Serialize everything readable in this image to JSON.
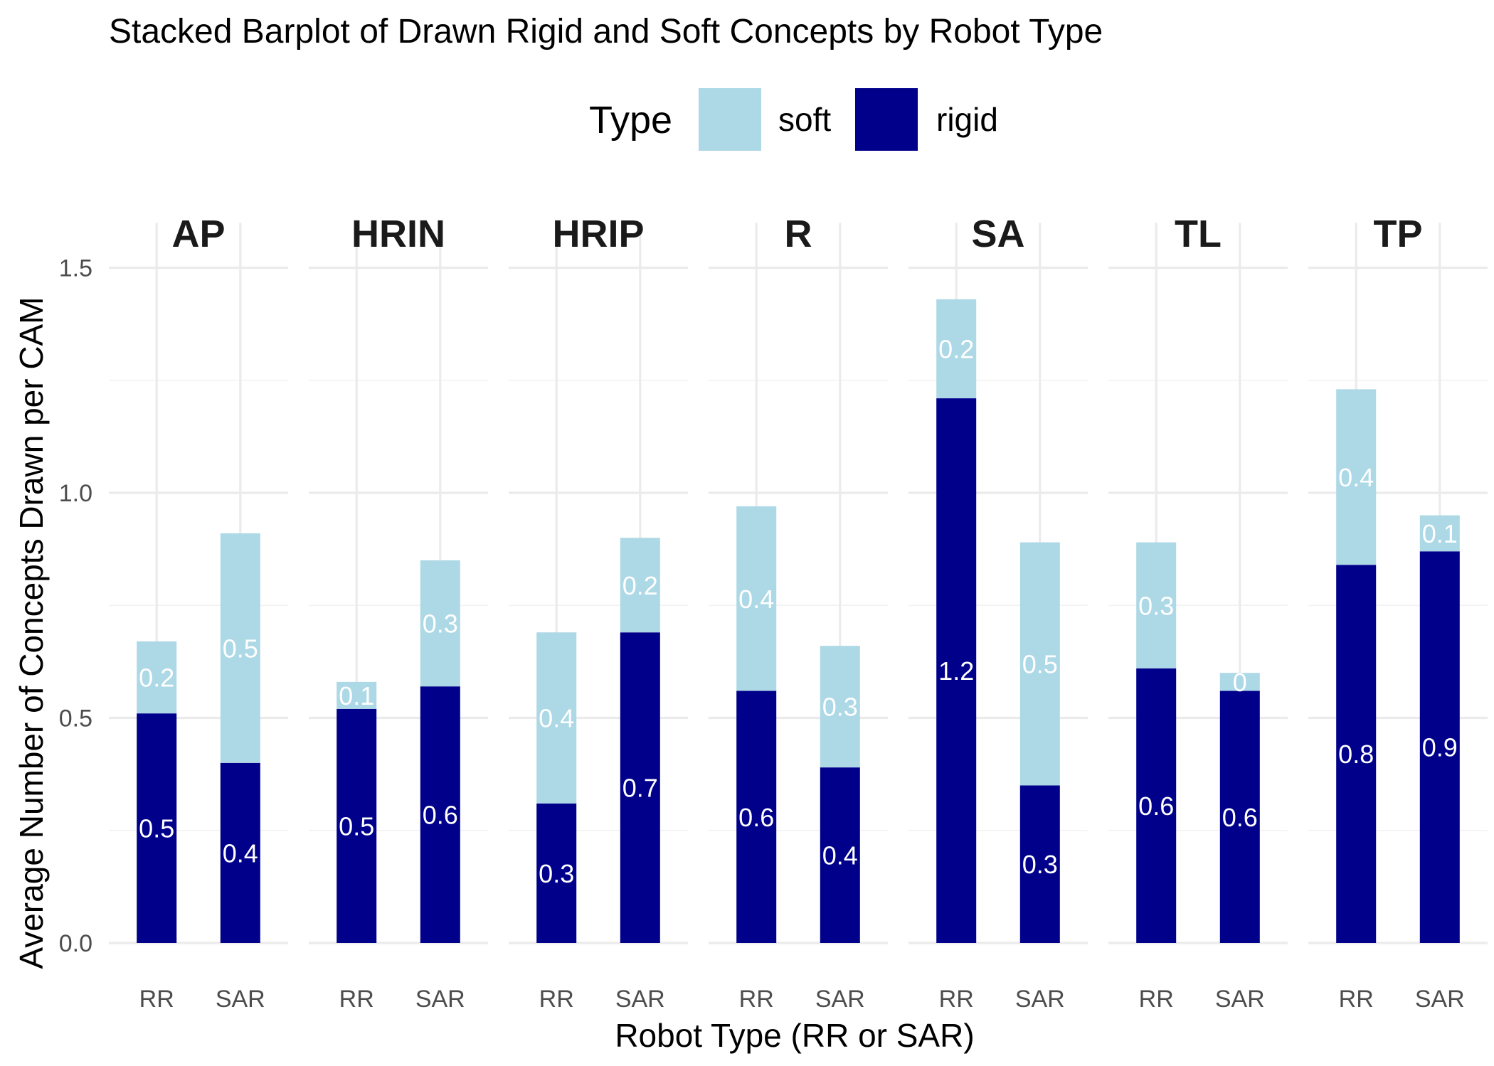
{
  "chart_data": {
    "type": "bar",
    "stacked": true,
    "title": "Stacked Barplot of Drawn Rigid and Soft Concepts by Robot Type",
    "xlabel": "Robot Type (RR or SAR)",
    "ylabel": "Average Number of Concepts Drawn per CAM",
    "ylim": [
      0,
      1.6
    ],
    "y_ticks": [
      "0.0",
      "0.5",
      "1.0",
      "1.5"
    ],
    "y_tick_values": [
      0,
      0.5,
      1.0,
      1.5
    ],
    "grid": true,
    "legend": {
      "title": "Type",
      "placement": "top",
      "entries": [
        {
          "label": "soft",
          "color": "#add8e6"
        },
        {
          "label": "rigid",
          "color": "#00008b"
        }
      ]
    },
    "categories": [
      "RR",
      "SAR"
    ],
    "facets": [
      {
        "name": "AP",
        "bars": [
          {
            "category": "RR",
            "rigid": 0.51,
            "soft": 0.16,
            "rigid_label": "0.5",
            "soft_label": "0.2"
          },
          {
            "category": "SAR",
            "rigid": 0.4,
            "soft": 0.51,
            "rigid_label": "0.4",
            "soft_label": "0.5"
          }
        ]
      },
      {
        "name": "HRIN",
        "bars": [
          {
            "category": "RR",
            "rigid": 0.52,
            "soft": 0.06,
            "rigid_label": "0.5",
            "soft_label": "0.1"
          },
          {
            "category": "SAR",
            "rigid": 0.57,
            "soft": 0.28,
            "rigid_label": "0.6",
            "soft_label": "0.3"
          }
        ]
      },
      {
        "name": "HRIP",
        "bars": [
          {
            "category": "RR",
            "rigid": 0.31,
            "soft": 0.38,
            "rigid_label": "0.3",
            "soft_label": "0.4"
          },
          {
            "category": "SAR",
            "rigid": 0.69,
            "soft": 0.21,
            "rigid_label": "0.7",
            "soft_label": "0.2"
          }
        ]
      },
      {
        "name": "R",
        "bars": [
          {
            "category": "RR",
            "rigid": 0.56,
            "soft": 0.41,
            "rigid_label": "0.6",
            "soft_label": "0.4"
          },
          {
            "category": "SAR",
            "rigid": 0.39,
            "soft": 0.27,
            "rigid_label": "0.4",
            "soft_label": "0.3"
          }
        ]
      },
      {
        "name": "SA",
        "bars": [
          {
            "category": "RR",
            "rigid": 1.21,
            "soft": 0.22,
            "rigid_label": "1.2",
            "soft_label": "0.2"
          },
          {
            "category": "SAR",
            "rigid": 0.35,
            "soft": 0.54,
            "rigid_label": "0.3",
            "soft_label": "0.5"
          }
        ]
      },
      {
        "name": "TL",
        "bars": [
          {
            "category": "RR",
            "rigid": 0.61,
            "soft": 0.28,
            "rigid_label": "0.6",
            "soft_label": "0.3"
          },
          {
            "category": "SAR",
            "rigid": 0.56,
            "soft": 0.04,
            "rigid_label": "0.6",
            "soft_label": "0"
          }
        ]
      },
      {
        "name": "TP",
        "bars": [
          {
            "category": "RR",
            "rigid": 0.84,
            "soft": 0.39,
            "rigid_label": "0.8",
            "soft_label": "0.4"
          },
          {
            "category": "SAR",
            "rigid": 0.87,
            "soft": 0.08,
            "rigid_label": "0.9",
            "soft_label": "0.1"
          }
        ]
      }
    ]
  }
}
